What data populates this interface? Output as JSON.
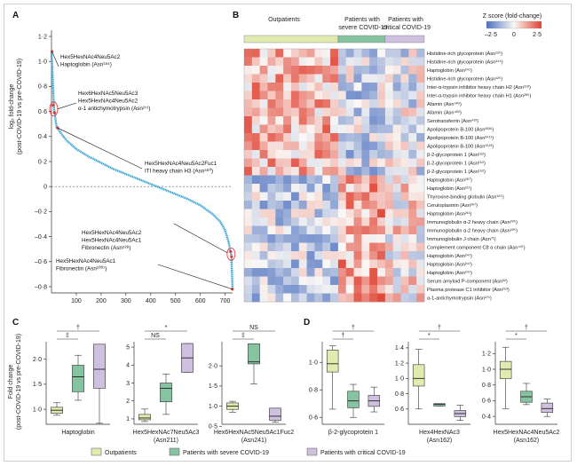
{
  "panels": {
    "A": {
      "label": "A",
      "ylabel_1": "log₂ fold-change",
      "ylabel_2": "(post-COVID-19 vs pre-COVID-19)",
      "yticks": [
        "1·2",
        "1·0",
        "0·8",
        "0·6",
        "0·4",
        "0·2",
        "0",
        "–0·2",
        "–0·4",
        "–0·6",
        "–0·8"
      ],
      "xticks": [
        "100",
        "200",
        "300",
        "400",
        "500",
        "600",
        "700"
      ],
      "annotations": [
        {
          "lines": [
            "Hex5HexNAc4Neu5Ac2",
            "Haptoglobin (Asn¹⁸⁴)"
          ]
        },
        {
          "lines": [
            "Hex6HexNAc5Neu5Ac3",
            "Hex5HexNAc4Neu5Ac2",
            "α-1 antichymotrypsin (Asn²⁷¹)"
          ]
        },
        {
          "lines": [
            "Hex5HexNAc4Neu5Ac2Fuc1",
            "ITI heavy chain H3 (Asn⁵⁸⁰)"
          ]
        },
        {
          "lines": [
            "Hex5HexNAc4Neu5Ac2",
            "Hex5HexNAc4Neu5Ac1",
            "Fibronectin (Asn⁵²⁸)"
          ]
        },
        {
          "lines": [
            "Hex5HexNAc4Neu5Ac1",
            "Fibronectin (Asn¹⁰⁰⁷)"
          ]
        }
      ]
    },
    "B": {
      "label": "B",
      "groups": [
        "Outpatients",
        "Patients with severe COVID-19",
        "Patients with critical COVID-19"
      ],
      "legend_title": "Z score (fold-change)",
      "legend_ticks": [
        "–2·5",
        "0",
        "2·5"
      ],
      "rows": [
        "Histidine-rich glycoprotein (Asn¹²⁵)",
        "Histidine-rich glycoprotein (Asn³⁴⁴)",
        "Haptoglobin (Asn²⁴¹)",
        "Histidine-rich glycoprotein (Asn¹²⁵)",
        "Inter-α-trypsin inhibitor heavy chain H2 (Asn¹¹⁸)",
        "Inter-α-trypsin inhibitor heavy chain H1 (Asn²⁸⁵)",
        "Afamin (Asn⁴⁰²)",
        "Afamin (Asn⁴⁰²)",
        "Serotransferrin (Asn⁴³²)",
        "Apolipoprotein B-100 (Asn³³³⁹)",
        "Apolipoprotein B-100 (Asn³⁴¹¹)",
        "Apolipoprotein B-100 (Asn¹⁵²³)",
        "β-2-glycoprotein 1 (Asn¹⁶²)",
        "β-2-glycoprotein 1 (Asn¹⁶²)",
        "β-2-glycoprotein 1 (Asn¹⁶²)",
        "Haptoglobin (Asn²⁰⁷)",
        "Haptoglobin (Asn²¹¹)",
        "Thyroxine-binding globulin (Asn¹⁶⁵)",
        "Ceruloplasmin (Asn³⁹⁷)",
        "Haptoglobin (Asn²¹¹)",
        "Immunoglobulin α-2 heavy chain (Asn²⁰⁵)",
        "Immunoglobulin α-2 heavy chain (Asn²⁰⁵)",
        "Immunoglobulin J chain (Asn⁷¹)",
        "Complement component C8 α chain (Asn⁴³⁷)",
        "Haptoglobin (Asn²⁴¹)",
        "Haptoglobin (Asn²⁴¹)",
        "Haptoglobin (Asn²⁴¹)",
        "Serum amyloid P-component (Asn³²)",
        "Plasma protease C1 inhibitor (Asn²⁵³)",
        "α-1-antichymotrypsin (Asn²⁷¹)"
      ]
    },
    "C": {
      "label": "C",
      "ylabel_1": "Fold change",
      "ylabel_2": "(post-COVID-19 vs pre-COVID-19)"
    },
    "D": {
      "label": "D"
    }
  },
  "legend": {
    "items": [
      {
        "label": "Outpatients",
        "color": "#e1ebb0"
      },
      {
        "label": "Patients with severe COVID-19",
        "color": "#86c3a0"
      },
      {
        "label": "Patients with critical COVID-19",
        "color": "#cfc0e0"
      }
    ]
  },
  "colors": {
    "outpatients": "#e1ebb0",
    "severe": "#86c3a0",
    "critical": "#cfc0e0",
    "curve": "#2e9fd2",
    "highlight": "#e03b3b",
    "heat_high": "#e04030",
    "heat_low": "#4a6fbf"
  },
  "chart_data": [
    {
      "type": "line",
      "panel": "A",
      "description_free": true,
      "x_range": [
        0,
        730
      ],
      "ylim": [
        -0.85,
        1.25
      ],
      "x": [
        0,
        10,
        20,
        40,
        60,
        100,
        150,
        200,
        250,
        300,
        350,
        400,
        450,
        500,
        550,
        600,
        650,
        680,
        700,
        715,
        725,
        730
      ],
      "y": [
        1.08,
        0.63,
        0.48,
        0.42,
        0.37,
        0.3,
        0.24,
        0.19,
        0.14,
        0.1,
        0.06,
        0.02,
        -0.02,
        -0.06,
        -0.1,
        -0.15,
        -0.22,
        -0.28,
        -0.35,
        -0.45,
        -0.55,
        -0.82
      ],
      "highlighted_points": [
        {
          "x": 2,
          "y": 1.08
        },
        {
          "x": 7,
          "y": 0.65
        },
        {
          "x": 12,
          "y": 0.59
        },
        {
          "x": 24,
          "y": 0.47
        },
        {
          "x": 722,
          "y": -0.52
        },
        {
          "x": 726,
          "y": -0.56
        },
        {
          "x": 729,
          "y": -0.82
        }
      ]
    },
    {
      "type": "heatmap",
      "panel": "B",
      "columns_per_group": [
        12,
        6,
        5
      ],
      "z_range": [
        -2.5,
        2.5
      ]
    },
    {
      "type": "box",
      "panel": "C",
      "plots": [
        {
          "xlabel": [
            "Haptoglobin"
          ],
          "yticks": [
            1.0,
            1.5,
            2.0
          ],
          "ylim": [
            0.7,
            2.35
          ],
          "sig_top": "†",
          "sig_mid": "‡",
          "boxes": [
            {
              "group": "outpatients",
              "whisker_low": 0.88,
              "q1": 0.92,
              "median": 0.98,
              "q3": 1.04,
              "whisker_high": 1.13
            },
            {
              "group": "severe",
              "whisker_low": 1.18,
              "q1": 1.35,
              "median": 1.65,
              "q3": 1.88,
              "whisker_high": 2.08
            },
            {
              "group": "critical",
              "whisker_low": 0.72,
              "q1": 1.42,
              "median": 1.8,
              "q3": 2.3,
              "whisker_high": 2.3
            }
          ]
        },
        {
          "xlabel": [
            "Hex5HexNAc7Neu5Ac3",
            "(Asn211)"
          ],
          "yticks": [
            1,
            2,
            3,
            4,
            5
          ],
          "ylim": [
            0.7,
            5.3
          ],
          "sig_top": "*",
          "sig_mid": "NS",
          "boxes": [
            {
              "group": "outpatients",
              "whisker_low": 0.85,
              "q1": 0.95,
              "median": 1.05,
              "q3": 1.25,
              "whisker_high": 1.55
            },
            {
              "group": "severe",
              "whisker_low": 1.25,
              "q1": 1.95,
              "median": 2.7,
              "q3": 3.0,
              "whisker_high": 3.5
            },
            {
              "group": "critical",
              "whisker_low": 3.6,
              "q1": 3.6,
              "median": 4.4,
              "q3": 5.2,
              "whisker_high": 5.2
            }
          ]
        },
        {
          "xlabel": [
            "Hex6HexNAc5Neu5Ac1Fuc2",
            "(Asn241)"
          ],
          "yticks": [
            0.5,
            1.0,
            1.5,
            2.0
          ],
          "ylim": [
            0.55,
            2.6
          ],
          "sig_top": "NS",
          "sig_mid": "‡",
          "boxes": [
            {
              "group": "outpatients",
              "whisker_low": 0.85,
              "q1": 0.92,
              "median": 1.0,
              "q3": 1.08,
              "whisker_high": 1.12
            },
            {
              "group": "severe",
              "whisker_low": 1.55,
              "q1": 2.05,
              "median": 2.1,
              "q3": 2.55,
              "whisker_high": 2.55
            },
            {
              "group": "critical",
              "whisker_low": 0.6,
              "q1": 0.65,
              "median": 0.75,
              "q3": 0.95,
              "whisker_high": 0.95
            }
          ]
        }
      ]
    },
    {
      "type": "box",
      "panel": "D",
      "plots": [
        {
          "xlabel": [
            "β-2-glycoprotein 1"
          ],
          "yticks": [
            0.6,
            0.8,
            1.0
          ],
          "ylim": [
            0.55,
            1.15
          ],
          "sig_top": "†",
          "sig_mid": "†",
          "boxes": [
            {
              "group": "outpatients",
              "whisker_low": 0.66,
              "q1": 0.93,
              "median": 0.99,
              "q3": 1.09,
              "whisker_high": 1.12
            },
            {
              "group": "severe",
              "whisker_low": 0.6,
              "q1": 0.67,
              "median": 0.72,
              "q3": 0.79,
              "whisker_high": 0.84
            },
            {
              "group": "critical",
              "whisker_low": 0.64,
              "q1": 0.68,
              "median": 0.72,
              "q3": 0.76,
              "whisker_high": 0.82
            }
          ]
        },
        {
          "xlabel": [
            "Hex4HexNAc3",
            "(Asn162)"
          ],
          "yticks": [
            0.6,
            0.8,
            1.0,
            1.2,
            1.4
          ],
          "ylim": [
            0.4,
            1.48
          ],
          "sig_top": "†",
          "sig_mid": "*",
          "boxes": [
            {
              "group": "outpatients",
              "whisker_low": 0.6,
              "q1": 0.9,
              "median": 1.0,
              "q3": 1.18,
              "whisker_high": 1.38
            },
            {
              "group": "severe",
              "whisker_low": 0.64,
              "q1": 0.64,
              "median": 0.66,
              "q3": 0.67,
              "whisker_high": 0.67
            },
            {
              "group": "critical",
              "whisker_low": 0.45,
              "q1": 0.5,
              "median": 0.54,
              "q3": 0.58,
              "whisker_high": 0.65
            }
          ]
        },
        {
          "xlabel": [
            "Hex5HexNAc4Neu5Ac2",
            "(Asn162)"
          ],
          "yticks": [
            0.4,
            0.6,
            0.8,
            1.0,
            1.2
          ],
          "ylim": [
            0.3,
            1.35
          ],
          "sig_top": "†",
          "sig_mid": "*",
          "boxes": [
            {
              "group": "outpatients",
              "whisker_low": 0.5,
              "q1": 0.88,
              "median": 1.0,
              "q3": 1.1,
              "whisker_high": 1.28
            },
            {
              "group": "severe",
              "whisker_low": 0.55,
              "q1": 0.58,
              "median": 0.65,
              "q3": 0.72,
              "whisker_high": 0.82
            },
            {
              "group": "critical",
              "whisker_low": 0.4,
              "q1": 0.45,
              "median": 0.5,
              "q3": 0.57,
              "whisker_high": 0.62
            }
          ]
        }
      ]
    }
  ]
}
